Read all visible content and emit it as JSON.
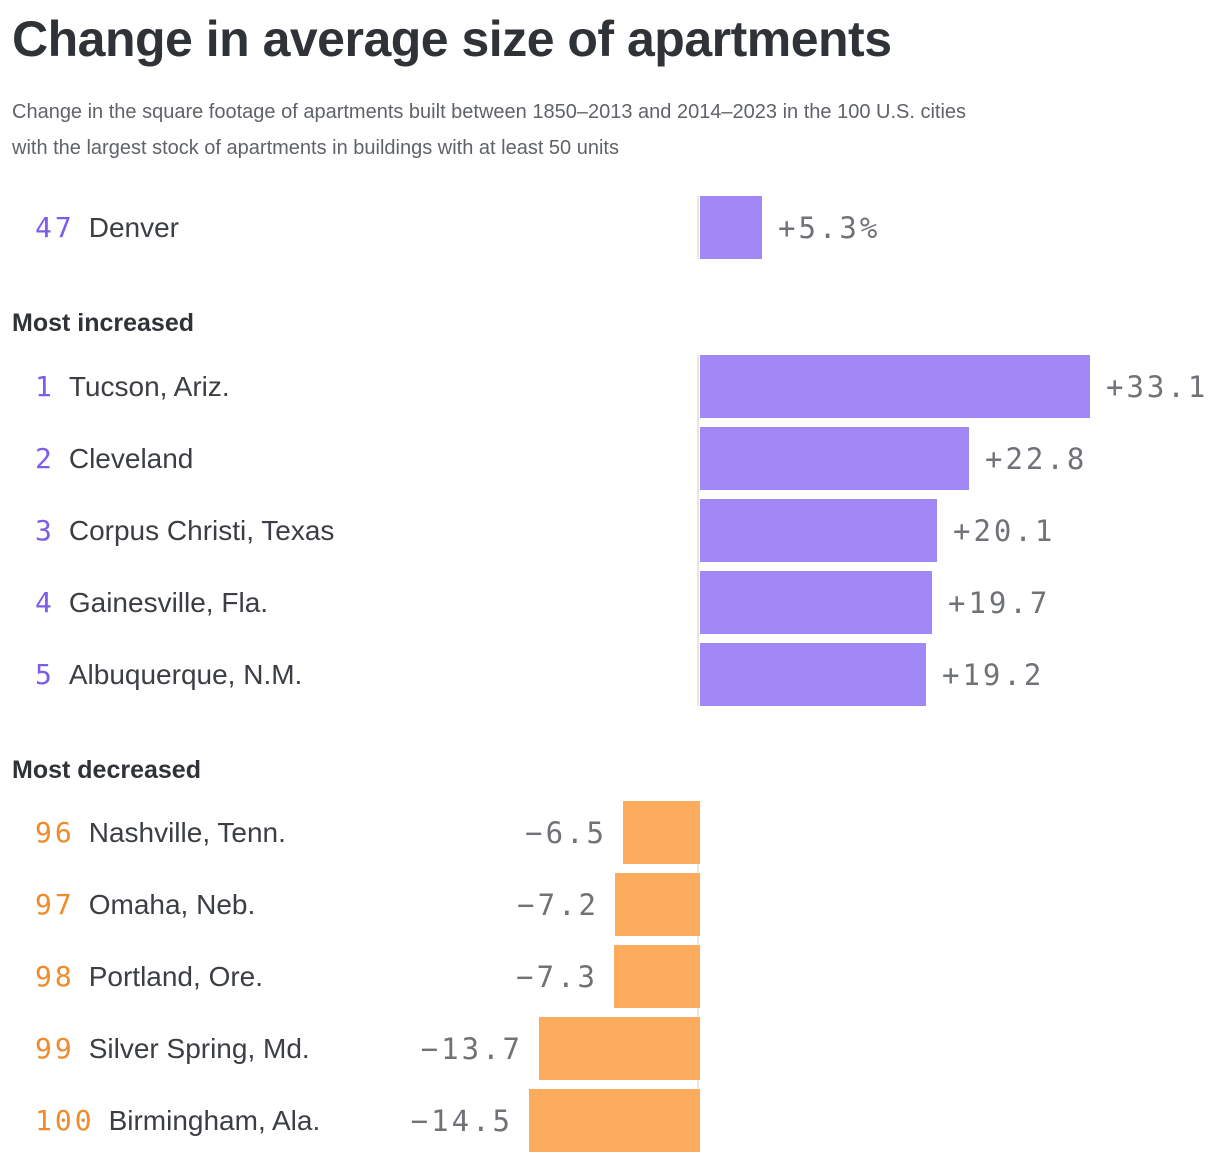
{
  "header": {
    "title": "Change in average size of apartments",
    "subtitle_line1": "Change in the square footage of apartments built between 1850–2013 and 2014–2023 in the 100 U.S. cities",
    "subtitle_line2": "with the largest stock of apartments in buildings with at least 50 units"
  },
  "colors": {
    "increase_bar": "#a287f7",
    "decrease_bar": "#fcac5c",
    "increase_rank_text": "#7d5de8",
    "decrease_rank_text": "#ef8b2a",
    "value_label_text": "#6f7276",
    "city_text": "#3b3e43",
    "title_text": "#2f3237",
    "subtitle_text": "#5f6368",
    "axis_line": "#e9e7e2"
  },
  "chart_data": {
    "type": "bar",
    "orientation": "horizontal",
    "unit": "% change in average apartment square footage",
    "title": "Change in average size of apartments",
    "subtitle": "Change in the square footage of apartments built between 1850–2013 and 2014–2023 in the 100 U.S. cities with the largest stock of apartments in buildings with at least 50 units",
    "highlight": {
      "rank": "47",
      "city": "Denver",
      "value": 5.3,
      "label": "+5.3%"
    },
    "sections": [
      {
        "id": "increased",
        "heading": "Most increased",
        "direction": "right",
        "rows": [
          {
            "rank": "1",
            "city": "Tucson, Ariz.",
            "value": 33.1,
            "label": "+33.1"
          },
          {
            "rank": "2",
            "city": "Cleveland",
            "value": 22.8,
            "label": "+22.8"
          },
          {
            "rank": "3",
            "city": "Corpus Christi, Texas",
            "value": 20.1,
            "label": "+20.1"
          },
          {
            "rank": "4",
            "city": "Gainesville, Fla.",
            "value": 19.7,
            "label": "+19.7"
          },
          {
            "rank": "5",
            "city": "Albuquerque, N.M.",
            "value": 19.2,
            "label": "+19.2"
          }
        ]
      },
      {
        "id": "decreased",
        "heading": "Most decreased",
        "direction": "left",
        "rows": [
          {
            "rank": "96",
            "city": "Nashville, Tenn.",
            "value": -6.5,
            "label": "−6.5"
          },
          {
            "rank": "97",
            "city": "Omaha, Neb.",
            "value": -7.2,
            "label": "−7.2"
          },
          {
            "rank": "98",
            "city": "Portland, Ore.",
            "value": -7.3,
            "label": "−7.3"
          },
          {
            "rank": "99",
            "city": "Silver Spring, Md.",
            "value": -13.7,
            "label": "−13.7"
          },
          {
            "rank": "100",
            "city": "Birmingham, Ala.",
            "value": -14.5,
            "label": "−14.5"
          }
        ]
      }
    ]
  }
}
